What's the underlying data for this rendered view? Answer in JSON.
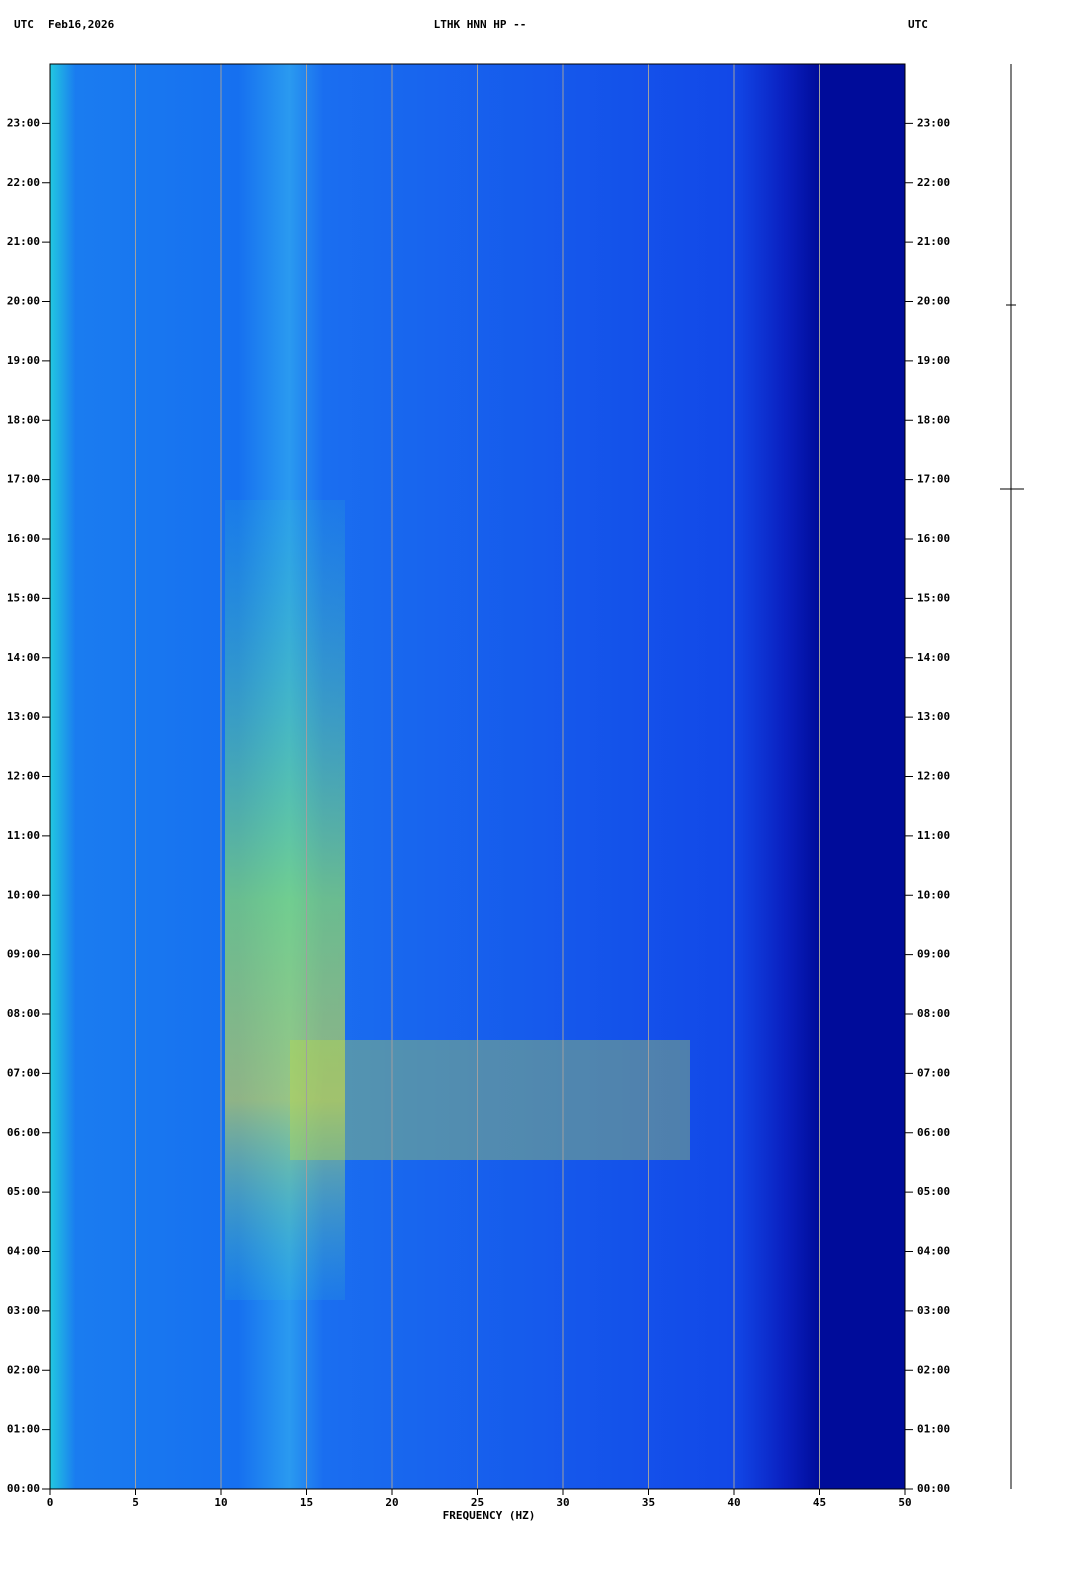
{
  "chart_data": {
    "type": "spectrogram",
    "title": "LTHK HNN HP --",
    "left_label": "UTC",
    "date": "Feb16,2026",
    "right_label": "UTC",
    "x_label": "FREQUENCY (HZ)",
    "xlim": [
      0,
      50
    ],
    "xticks": [
      0,
      5,
      10,
      15,
      20,
      25,
      30,
      35,
      40,
      45,
      50
    ],
    "ylim": [
      0,
      24
    ],
    "yticks": [
      {
        "value": 0,
        "label": "00:00"
      },
      {
        "value": 1,
        "label": "01:00"
      },
      {
        "value": 2,
        "label": "02:00"
      },
      {
        "value": 3,
        "label": "03:00"
      },
      {
        "value": 4,
        "label": "04:00"
      },
      {
        "value": 5,
        "label": "05:00"
      },
      {
        "value": 6,
        "label": "06:00"
      },
      {
        "value": 7,
        "label": "07:00"
      },
      {
        "value": 8,
        "label": "08:00"
      },
      {
        "value": 9,
        "label": "09:00"
      },
      {
        "value": 10,
        "label": "10:00"
      },
      {
        "value": 11,
        "label": "11:00"
      },
      {
        "value": 12,
        "label": "12:00"
      },
      {
        "value": 13,
        "label": "13:00"
      },
      {
        "value": 14,
        "label": "14:00"
      },
      {
        "value": 15,
        "label": "15:00"
      },
      {
        "value": 16,
        "label": "16:00"
      },
      {
        "value": 17,
        "label": "17:00"
      },
      {
        "value": 18,
        "label": "18:00"
      },
      {
        "value": 19,
        "label": "19:00"
      },
      {
        "value": 20,
        "label": "20:00"
      },
      {
        "value": 21,
        "label": "21:00"
      },
      {
        "value": 22,
        "label": "22:00"
      },
      {
        "value": 23,
        "label": "23:00"
      }
    ],
    "grid": true,
    "grid_color": "#a0a0a0"
  }
}
